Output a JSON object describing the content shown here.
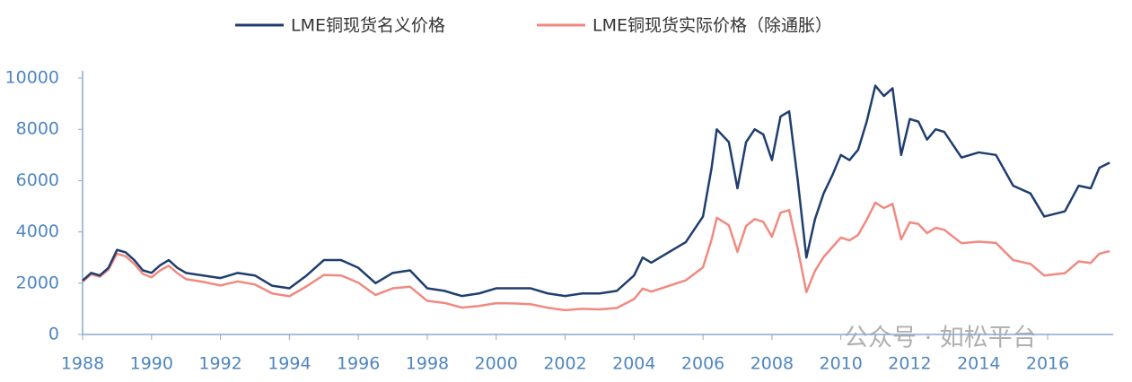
{
  "chart_data": {
    "type": "line",
    "annotation": "公众号 · 如松平台",
    "x": [
      1988,
      1988.25,
      1988.5,
      1988.75,
      1989,
      1989.25,
      1989.5,
      1989.75,
      1990,
      1990.25,
      1990.5,
      1990.75,
      1991,
      1991.5,
      1992,
      1992.5,
      1993,
      1993.5,
      1994,
      1994.5,
      1995,
      1995.5,
      1996,
      1996.5,
      1997,
      1997.5,
      1998,
      1998.5,
      1999,
      1999.5,
      2000,
      2000.5,
      2001,
      2001.5,
      2002,
      2002.5,
      2003,
      2003.5,
      2004,
      2004.25,
      2004.5,
      2005,
      2005.5,
      2006,
      2006.25,
      2006.4,
      2006.75,
      2007,
      2007.25,
      2007.5,
      2007.75,
      2008,
      2008.25,
      2008.5,
      2008.75,
      2009,
      2009.25,
      2009.5,
      2009.75,
      2010,
      2010.25,
      2010.5,
      2010.75,
      2011,
      2011.25,
      2011.5,
      2011.75,
      2012,
      2012.25,
      2012.5,
      2012.75,
      2013,
      2013.5,
      2014,
      2014.5,
      2015,
      2015.5,
      2015.9,
      2016.5,
      2016.9,
      2017.25,
      2017.5,
      2017.8
    ],
    "series": [
      {
        "name": "LME铜现货名义价格",
        "color": "#1f3e6e",
        "values": [
          2100,
          2400,
          2300,
          2600,
          3300,
          3200,
          2900,
          2500,
          2400,
          2700,
          2900,
          2600,
          2400,
          2300,
          2200,
          2400,
          2300,
          1900,
          1800,
          2300,
          2900,
          2900,
          2600,
          2000,
          2400,
          2500,
          1800,
          1700,
          1500,
          1600,
          1800,
          1800,
          1800,
          1600,
          1500,
          1600,
          1600,
          1700,
          2300,
          3000,
          2800,
          3200,
          3600,
          4600,
          6500,
          8000,
          7500,
          5700,
          7500,
          8000,
          7800,
          6800,
          8500,
          8700,
          6000,
          3000,
          4500,
          5500,
          6200,
          7000,
          6800,
          7200,
          8300,
          9700,
          9300,
          9600,
          7000,
          8400,
          8300,
          7600,
          8000,
          7900,
          6900,
          7100,
          7000,
          5800,
          5500,
          4600,
          4800,
          5800,
          5700,
          6500,
          6700
        ]
      },
      {
        "name": "LME铜现货实际价格（除通胀）",
        "color": "#f08a80",
        "values": [
          2060,
          2350,
          2250,
          2530,
          3150,
          3050,
          2750,
          2360,
          2230,
          2500,
          2680,
          2390,
          2160,
          2050,
          1910,
          2070,
          1950,
          1600,
          1490,
          1880,
          2320,
          2300,
          2020,
          1540,
          1800,
          1860,
          1310,
          1230,
          1050,
          1110,
          1220,
          1210,
          1180,
          1040,
          950,
          1000,
          980,
          1030,
          1380,
          1790,
          1670,
          1890,
          2110,
          2620,
          3700,
          4550,
          4260,
          3220,
          4230,
          4500,
          4390,
          3810,
          4750,
          4850,
          3340,
          1650,
          2480,
          3020,
          3400,
          3780,
          3670,
          3880,
          4470,
          5140,
          4930,
          5090,
          3710,
          4370,
          4310,
          3950,
          4160,
          4080,
          3560,
          3620,
          3570,
          2900,
          2750,
          2300,
          2390,
          2850,
          2790,
          3150,
          3250
        ]
      }
    ],
    "xlim": [
      1988,
      2017.9
    ],
    "xticks": [
      1988,
      1990,
      1992,
      1994,
      1996,
      1998,
      2000,
      2002,
      2004,
      2006,
      2008,
      2010,
      2012,
      2014,
      2016
    ],
    "ylim": [
      0,
      10000
    ],
    "yticks": [
      0,
      2000,
      4000,
      6000,
      8000,
      10000
    ],
    "grid": false,
    "legend": "top"
  }
}
